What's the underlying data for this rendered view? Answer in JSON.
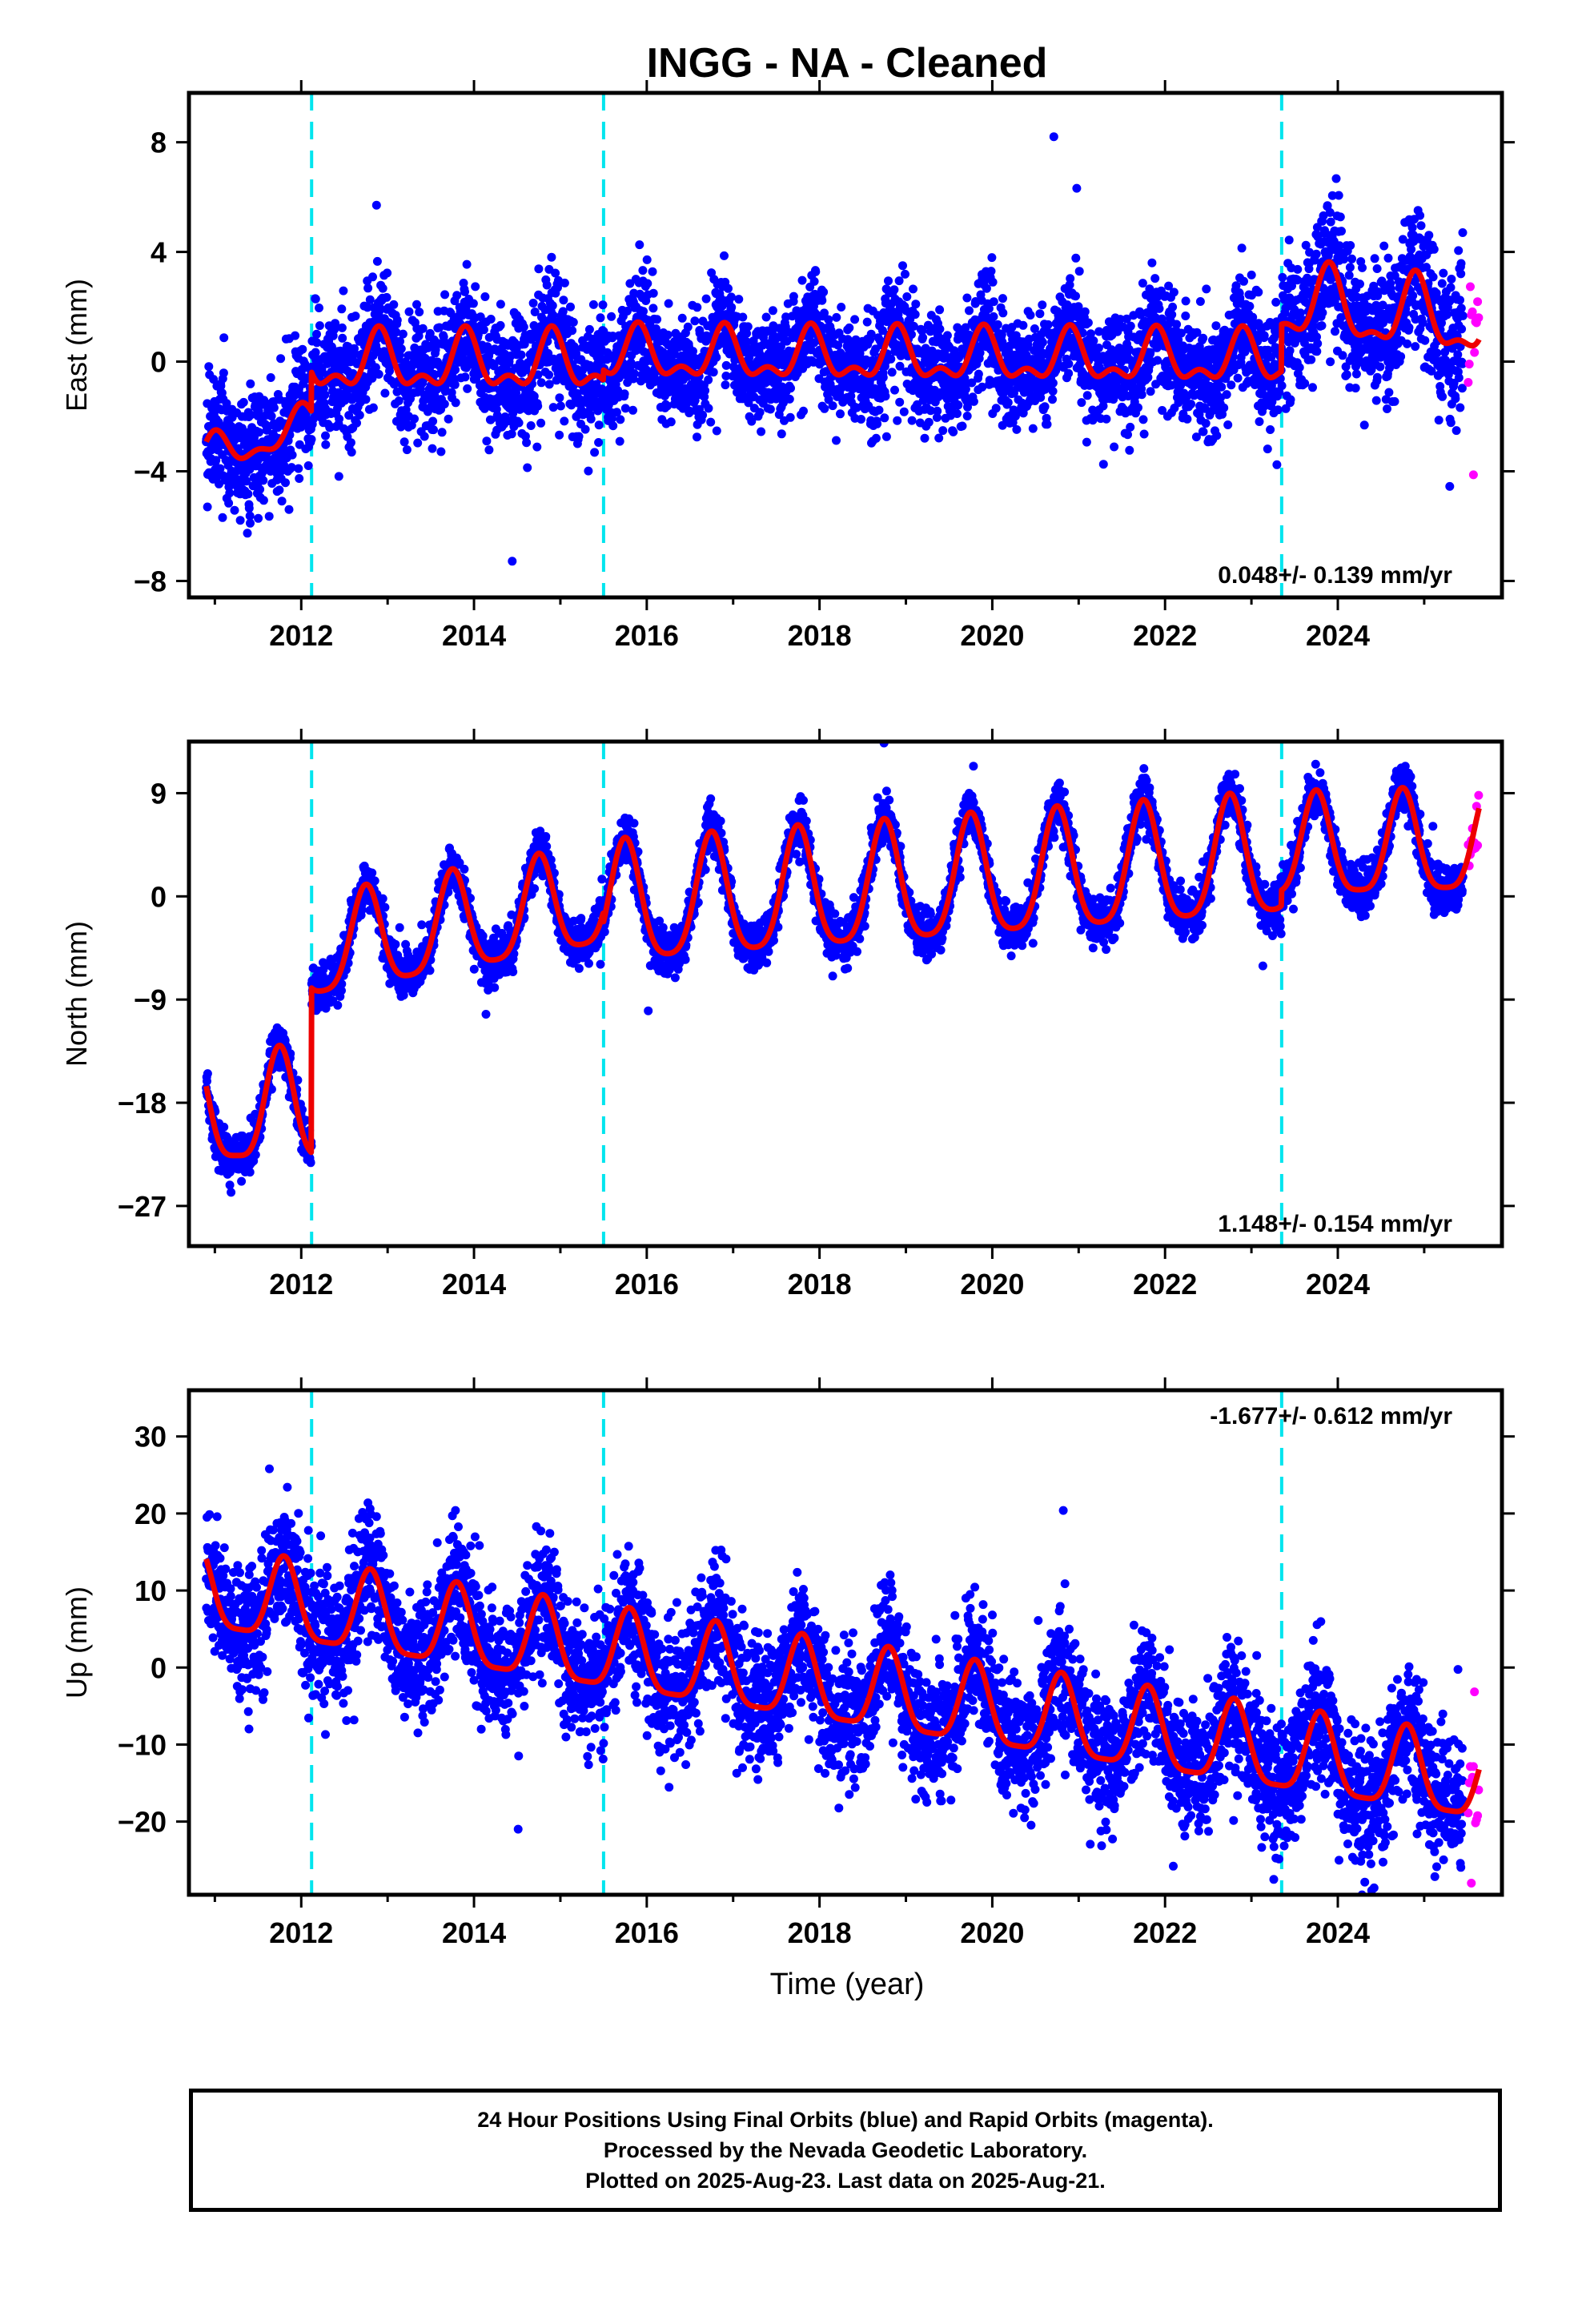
{
  "title": "INGG  - NA - Cleaned",
  "colors": {
    "final_orbits": "#0000ff",
    "rapid_orbits": "#ff00ff",
    "fit": "#ee0000",
    "event_line": "#00e5ee",
    "axis": "#000000"
  },
  "x_label": "Time (year)",
  "footer": {
    "line1": "24 Hour Positions Using Final Orbits (blue) and Rapid Orbits (magenta).",
    "line2": "Processed by the Nevada Geodetic Laboratory.",
    "line3": "Plotted on 2025-Aug-23. Last data on 2025-Aug-21."
  },
  "chart_data": [
    {
      "type": "scatter",
      "component": "east",
      "ylabel": "East (mm)",
      "xlim": [
        2010.7,
        2025.9
      ],
      "ylim": [
        -8.6,
        9.8
      ],
      "xticks": [
        2012,
        2014,
        2016,
        2018,
        2020,
        2022,
        2024
      ],
      "yticks": [
        -8,
        -4,
        0,
        4,
        8
      ],
      "grid": false,
      "event_lines": [
        2012.12,
        2015.5,
        2023.35
      ],
      "velocity_label": "0.048+/- 0.139 mm/yr",
      "velocity_label_position": "bottom-right",
      "data_start": 2010.9,
      "data_end": 2025.64,
      "rapid_start": 2025.45,
      "segments": [
        {
          "start": 2010.9,
          "end": 2012.12,
          "offset": -3.5,
          "trend": 1.0,
          "amp1": 0.6,
          "amp2": 0.3,
          "phase": 1.0,
          "noise": 1.1
        },
        {
          "start": 2012.12,
          "end": 2015.5,
          "offset": -0.1,
          "trend": 0.0,
          "amp1": 0.9,
          "amp2": 0.5,
          "phase": 0.9,
          "noise": 1.1
        },
        {
          "start": 2015.5,
          "end": 2023.35,
          "offset": 0.2,
          "trend": -0.02,
          "amp1": 0.8,
          "amp2": 0.45,
          "phase": 0.9,
          "noise": 1.0
        },
        {
          "start": 2023.35,
          "end": 2025.64,
          "offset": 2.1,
          "trend": -0.3,
          "amp1": 1.2,
          "amp2": 0.5,
          "phase": 0.9,
          "noise": 1.3
        }
      ]
    },
    {
      "type": "scatter",
      "component": "north",
      "ylabel": "North (mm)",
      "xlim": [
        2010.7,
        2025.9
      ],
      "ylim": [
        -30.5,
        13.5
      ],
      "xticks": [
        2012,
        2014,
        2016,
        2018,
        2020,
        2022,
        2024
      ],
      "yticks": [
        -27,
        -18,
        -9,
        0,
        9
      ],
      "grid": false,
      "event_lines": [
        2012.12,
        2015.5,
        2023.35
      ],
      "velocity_label": "1.148+/- 0.154 mm/yr",
      "velocity_label_position": "bottom-right",
      "data_start": 2010.9,
      "data_end": 2025.64,
      "rapid_start": 2025.45,
      "segments": [
        {
          "start": 2010.9,
          "end": 2012.12,
          "offset": -19.0,
          "trend": 0.0,
          "amp1": 4.8,
          "amp2": 1.2,
          "phase": 0.75,
          "noise": 1.0
        },
        {
          "start": 2012.12,
          "end": 2015.5,
          "offset": -5.0,
          "trend": 1.35,
          "amp1": 4.3,
          "amp2": 0.9,
          "phase": 0.75,
          "noise": 1.0
        },
        {
          "start": 2015.5,
          "end": 2023.35,
          "offset": -1.2,
          "trend": 0.55,
          "amp1": 5.2,
          "amp2": 1.0,
          "phase": 0.75,
          "noise": 1.0
        },
        {
          "start": 2023.35,
          "end": 2025.64,
          "offset": 3.8,
          "trend": 0.2,
          "amp1": 4.4,
          "amp2": 1.0,
          "phase": 0.75,
          "noise": 1.0
        }
      ]
    },
    {
      "type": "scatter",
      "component": "up",
      "ylabel": "Up (mm)",
      "xlim": [
        2010.7,
        2025.9
      ],
      "ylim": [
        -29.5,
        36.0
      ],
      "xticks": [
        2012,
        2014,
        2016,
        2018,
        2020,
        2022,
        2024
      ],
      "yticks": [
        -20,
        -10,
        0,
        10,
        20,
        30
      ],
      "grid": false,
      "event_lines": [
        2012.12,
        2015.5,
        2023.35
      ],
      "velocity_label": "-1.677+/- 0.612 mm/yr",
      "velocity_label_position": "top-right",
      "data_start": 2010.9,
      "data_end": 2025.64,
      "rapid_start": 2025.45,
      "segments": [
        {
          "start": 2010.9,
          "end": 2025.64,
          "offset": 9.5,
          "trend": -1.68,
          "amp1": 5.2,
          "amp2": 1.3,
          "phase": 0.8,
          "noise": 4.2
        }
      ]
    }
  ]
}
